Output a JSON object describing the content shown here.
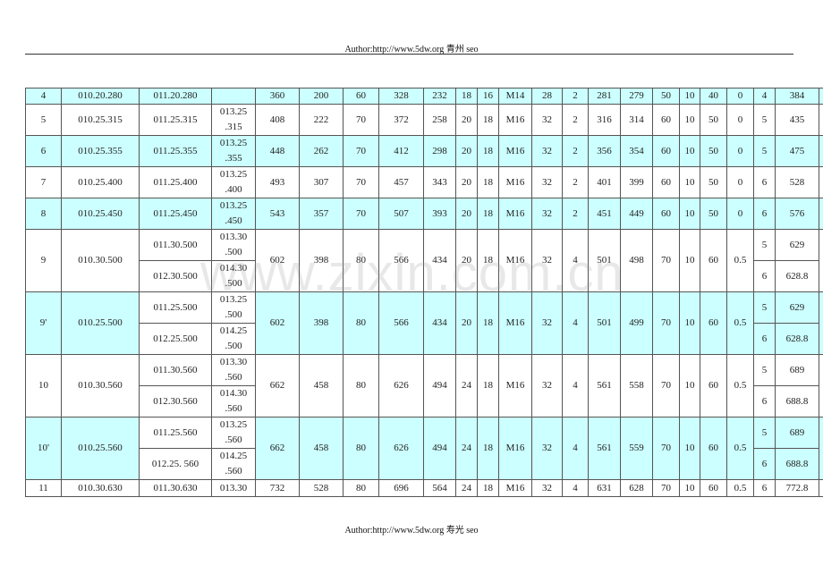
{
  "header": {
    "text": "Author:http://www.5dw.org  青州 seo"
  },
  "footer": {
    "text": "Author:http://www.5dw.org  寿光 seo"
  },
  "watermark": "www.zixin.com.cn",
  "colors": {
    "highlight_row": "#ccffff",
    "border": "#555555"
  },
  "rows": [
    {
      "no": "4",
      "code1": "010.20.280",
      "cyan": true,
      "subs": [
        {
          "code2": "011.20.280",
          "code3": "",
          "n": "4",
          "v": "384"
        }
      ],
      "values": [
        "360",
        "200",
        "60",
        "328",
        "232",
        "18",
        "16",
        "M14",
        "28",
        "2",
        "281",
        "279",
        "50",
        "10",
        "40",
        "0"
      ]
    },
    {
      "no": "5",
      "code1": "010.25.315",
      "cyan": false,
      "subs": [
        {
          "code2": "011.25.315",
          "code3": "013.25\n.315",
          "n": "5",
          "v": "435"
        }
      ],
      "values": [
        "408",
        "222",
        "70",
        "372",
        "258",
        "20",
        "18",
        "M16",
        "32",
        "2",
        "316",
        "314",
        "60",
        "10",
        "50",
        "0"
      ]
    },
    {
      "no": "6",
      "code1": "010.25.355",
      "cyan": true,
      "subs": [
        {
          "code2": "011.25.355",
          "code3": "013.25\n.355",
          "n": "5",
          "v": "475"
        }
      ],
      "values": [
        "448",
        "262",
        "70",
        "412",
        "298",
        "20",
        "18",
        "M16",
        "32",
        "2",
        "356",
        "354",
        "60",
        "10",
        "50",
        "0"
      ]
    },
    {
      "no": "7",
      "code1": "010.25.400",
      "cyan": false,
      "subs": [
        {
          "code2": "011.25.400",
          "code3": "013.25\n.400",
          "n": "6",
          "v": "528"
        }
      ],
      "values": [
        "493",
        "307",
        "70",
        "457",
        "343",
        "20",
        "18",
        "M16",
        "32",
        "2",
        "401",
        "399",
        "60",
        "10",
        "50",
        "0"
      ]
    },
    {
      "no": "8",
      "code1": "010.25.450",
      "cyan": true,
      "subs": [
        {
          "code2": "011.25.450",
          "code3": "013.25\n.450",
          "n": "6",
          "v": "576"
        }
      ],
      "values": [
        "543",
        "357",
        "70",
        "507",
        "393",
        "20",
        "18",
        "M16",
        "32",
        "2",
        "451",
        "449",
        "60",
        "10",
        "50",
        "0"
      ]
    },
    {
      "no": "9",
      "code1": "010.30.500",
      "cyan": false,
      "subs": [
        {
          "code2": "011.30.500",
          "code3": "013.30\n.500",
          "n": "5",
          "v": "629"
        },
        {
          "code2": "012.30.500",
          "code3": "014.30\n.500",
          "n": "6",
          "v": "628.8"
        }
      ],
      "values": [
        "602",
        "398",
        "80",
        "566",
        "434",
        "20",
        "18",
        "M16",
        "32",
        "4",
        "501",
        "498",
        "70",
        "10",
        "60",
        "0.5"
      ]
    },
    {
      "no": "9'",
      "code1": "010.25.500",
      "cyan": true,
      "subs": [
        {
          "code2": "011.25.500",
          "code3": "013.25\n.500",
          "n": "5",
          "v": "629"
        },
        {
          "code2": "012.25.500",
          "code3": "014.25\n.500",
          "n": "6",
          "v": "628.8"
        }
      ],
      "values": [
        "602",
        "398",
        "80",
        "566",
        "434",
        "20",
        "18",
        "M16",
        "32",
        "4",
        "501",
        "499",
        "70",
        "10",
        "60",
        "0.5"
      ]
    },
    {
      "no": "10",
      "code1": "010.30.560",
      "cyan": false,
      "subs": [
        {
          "code2": "011.30.560",
          "code3": "013.30\n.560",
          "n": "5",
          "v": "689"
        },
        {
          "code2": "012.30.560",
          "code3": "014.30\n.560",
          "n": "6",
          "v": "688.8"
        }
      ],
      "values": [
        "662",
        "458",
        "80",
        "626",
        "494",
        "24",
        "18",
        "M16",
        "32",
        "4",
        "561",
        "558",
        "70",
        "10",
        "60",
        "0.5"
      ]
    },
    {
      "no": "10'",
      "code1": "010.25.560",
      "cyan": true,
      "subs": [
        {
          "code2": "011.25.560",
          "code3": "013.25\n.560",
          "n": "5",
          "v": "689"
        },
        {
          "code2": "012.25.  560",
          "code3": "014.25\n.560",
          "n": "6",
          "v": "688.8"
        }
      ],
      "values": [
        "662",
        "458",
        "80",
        "626",
        "494",
        "24",
        "18",
        "M16",
        "32",
        "4",
        "561",
        "559",
        "70",
        "10",
        "60",
        "0.5"
      ]
    },
    {
      "no": "11",
      "code1": "010.30.630",
      "cyan": false,
      "subs": [
        {
          "code2": "011.30.630",
          "code3": "013.30",
          "n": "6",
          "v": "772.8"
        }
      ],
      "values": [
        "732",
        "528",
        "80",
        "696",
        "564",
        "24",
        "18",
        "M16",
        "32",
        "4",
        "631",
        "628",
        "70",
        "10",
        "60",
        "0.5"
      ]
    }
  ]
}
